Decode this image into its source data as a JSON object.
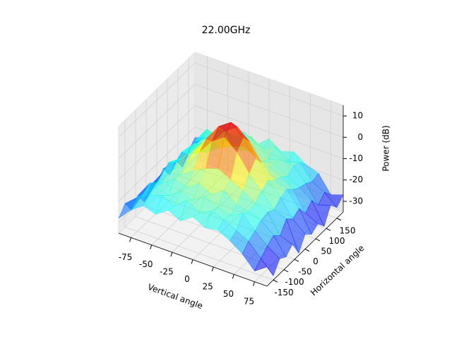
{
  "chart_data": {
    "type": "surface",
    "title": "22.00GHz",
    "xlabel": "Vertical angle",
    "ylabel": "Horizontal angle",
    "zlabel": "Power (dB)",
    "colormap": "jet",
    "grid": true,
    "x": [
      -90,
      -75,
      -60,
      -45,
      -30,
      -15,
      0,
      15,
      30,
      45,
      60,
      75,
      90
    ],
    "y": [
      -180,
      -150,
      -120,
      -90,
      -60,
      -30,
      0,
      30,
      60,
      90,
      120,
      150,
      180
    ],
    "z": [
      [
        -28,
        -22,
        -18,
        -20,
        -16,
        -19,
        -15,
        -18,
        -17,
        -20,
        -24,
        -30,
        -26
      ],
      [
        -24,
        -19,
        -16,
        -14,
        -17,
        -12,
        -16,
        -13,
        -15,
        -18,
        -21,
        -27,
        -33
      ],
      [
        -30,
        -20,
        -15,
        -17,
        -13,
        -15,
        -11,
        -14,
        -16,
        -13,
        -19,
        -24,
        -28
      ],
      [
        -26,
        -18,
        -16,
        -12,
        -14,
        -10,
        -13,
        -9,
        -14,
        -15,
        -17,
        -22,
        -30
      ],
      [
        -32,
        -21,
        -14,
        -13,
        -9,
        -6,
        -4,
        -7,
        -10,
        -14,
        -16,
        -25,
        -27
      ],
      [
        -27,
        -19,
        -15,
        -10,
        -3,
        4,
        8,
        3,
        -5,
        -11,
        -18,
        -20,
        -34
      ],
      [
        -29,
        -17,
        -13,
        -8,
        0,
        8,
        12,
        7,
        -1,
        -9,
        -15,
        -23,
        -28
      ],
      [
        -25,
        -20,
        -14,
        -11,
        -4,
        3,
        7,
        2,
        -6,
        -12,
        -14,
        -21,
        -31
      ],
      [
        -31,
        -18,
        -12,
        -14,
        -10,
        -7,
        -5,
        -8,
        -11,
        -13,
        -17,
        -26,
        -29
      ],
      [
        -27,
        -22,
        -15,
        -13,
        -9,
        -12,
        -10,
        -13,
        -12,
        -16,
        -19,
        -23,
        -33
      ],
      [
        -33,
        -19,
        -11,
        -15,
        -12,
        -14,
        -9,
        -15,
        -13,
        -14,
        -20,
        -28,
        -26
      ],
      [
        -28,
        -21,
        -16,
        -12,
        -16,
        -11,
        -15,
        -12,
        -17,
        -15,
        -22,
        -25,
        -30
      ],
      [
        -25,
        -23,
        -17,
        -19,
        -14,
        -18,
        -13,
        -17,
        -15,
        -19,
        -21,
        -29,
        -27
      ]
    ],
    "xlim": [
      -90,
      90
    ],
    "ylim": [
      -180,
      180
    ],
    "zlim": [
      -35,
      15
    ],
    "xticks": [
      -75,
      -50,
      -25,
      0,
      25,
      50,
      75
    ],
    "yticks": [
      -150,
      -100,
      -50,
      0,
      50,
      100,
      150
    ],
    "zticks": [
      -30,
      -20,
      -10,
      0,
      10
    ]
  }
}
